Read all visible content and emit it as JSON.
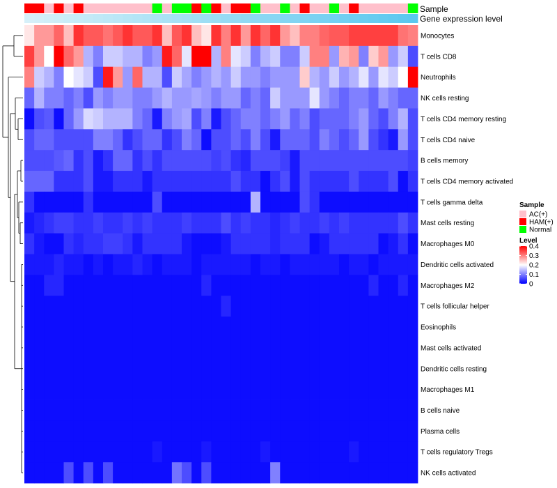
{
  "chart_data": {
    "type": "heatmap",
    "annotations": {
      "sample_label": "Sample",
      "gene_expression_label": "Gene expression level"
    },
    "sample_groups": [
      "HAM(+)",
      "HAM(+)",
      "AC(+)",
      "HAM(+)",
      "AC(+)",
      "HAM(+)",
      "AC(+)",
      "AC(+)",
      "AC(+)",
      "AC(+)",
      "AC(+)",
      "AC(+)",
      "AC(+)",
      "Normal",
      "AC(+)",
      "Normal",
      "Normal",
      "HAM(+)",
      "Normal",
      "HAM(+)",
      "AC(+)",
      "HAM(+)",
      "HAM(+)",
      "Normal",
      "AC(+)",
      "AC(+)",
      "Normal",
      "AC(+)",
      "HAM(+)",
      "AC(+)",
      "AC(+)",
      "Normal",
      "AC(+)",
      "HAM(+)",
      "AC(+)",
      "AC(+)",
      "AC(+)",
      "AC(+)",
      "AC(+)",
      "Normal"
    ],
    "rows": [
      {
        "name": "Monocytes",
        "values": [
          0.22,
          0.28,
          0.28,
          0.32,
          0.25,
          0.36,
          0.33,
          0.33,
          0.31,
          0.33,
          0.36,
          0.33,
          0.33,
          0.36,
          0.25,
          0.33,
          0.36,
          0.25,
          0.22,
          0.36,
          0.3,
          0.36,
          0.28,
          0.36,
          0.32,
          0.36,
          0.28,
          0.25,
          0.3,
          0.3,
          0.32,
          0.33,
          0.33,
          0.35,
          0.35,
          0.35,
          0.35,
          0.35,
          0.31,
          0.3
        ]
      },
      {
        "name": "T cells CD8",
        "values": [
          0.35,
          0.28,
          0.2,
          0.4,
          0.32,
          0.28,
          0.14,
          0.1,
          0.16,
          0.16,
          0.14,
          0.14,
          0.1,
          0.12,
          0.38,
          0.32,
          0.18,
          0.4,
          0.4,
          0.14,
          0.3,
          0.18,
          0.16,
          0.1,
          0.14,
          0.16,
          0.1,
          0.1,
          0.16,
          0.3,
          0.3,
          0.12,
          0.26,
          0.28,
          0.1,
          0.24,
          0.28,
          0.12,
          0.16,
          0.06
        ]
      },
      {
        "name": "Neutrophils",
        "values": [
          0.3,
          0.16,
          0.14,
          0.1,
          0.2,
          0.18,
          0.16,
          0.06,
          0.38,
          0.28,
          0.12,
          0.32,
          0.14,
          0.14,
          0.06,
          0.16,
          0.13,
          0.1,
          0.12,
          0.14,
          0.12,
          0.16,
          0.12,
          0.12,
          0.1,
          0.12,
          0.12,
          0.12,
          0.24,
          0.14,
          0.12,
          0.16,
          0.12,
          0.14,
          0.18,
          0.12,
          0.18,
          0.16,
          0.2,
          0.4
        ]
      },
      {
        "name": "NK cells resting",
        "values": [
          0.08,
          0.14,
          0.1,
          0.1,
          0.08,
          0.1,
          0.06,
          0.12,
          0.1,
          0.12,
          0.12,
          0.1,
          0.1,
          0.12,
          0.14,
          0.12,
          0.12,
          0.13,
          0.12,
          0.1,
          0.12,
          0.12,
          0.08,
          0.1,
          0.08,
          0.16,
          0.12,
          0.12,
          0.12,
          0.18,
          0.12,
          0.1,
          0.08,
          0.1,
          0.1,
          0.08,
          0.12,
          0.1,
          0.08,
          0.08
        ]
      },
      {
        "name": "T cells CD4 memory resting",
        "values": [
          0.01,
          0.06,
          0.07,
          0.01,
          0.08,
          0.12,
          0.17,
          0.16,
          0.14,
          0.14,
          0.14,
          0.1,
          0.08,
          0.02,
          0.1,
          0.12,
          0.13,
          0.06,
          0.1,
          0.02,
          0.06,
          0.08,
          0.1,
          0.1,
          0.08,
          0.1,
          0.12,
          0.08,
          0.1,
          0.06,
          0.08,
          0.08,
          0.08,
          0.1,
          0.12,
          0.08,
          0.06,
          0.1,
          0.14,
          0.06
        ]
      },
      {
        "name": "T cells CD4 naive",
        "values": [
          0.06,
          0.08,
          0.08,
          0.06,
          0.06,
          0.06,
          0.06,
          0.1,
          0.1,
          0.08,
          0.04,
          0.06,
          0.08,
          0.08,
          0.04,
          0.06,
          0.1,
          0.08,
          0.01,
          0.06,
          0.06,
          0.08,
          0.06,
          0.1,
          0.06,
          0.02,
          0.08,
          0.08,
          0.08,
          0.06,
          0.1,
          0.08,
          0.06,
          0.08,
          0.12,
          0.06,
          0.04,
          0.02,
          0.12,
          0.06
        ]
      },
      {
        "name": "B cells memory",
        "values": [
          0.06,
          0.06,
          0.06,
          0.07,
          0.08,
          0.04,
          0.06,
          0.02,
          0.04,
          0.08,
          0.08,
          0.04,
          0.06,
          0.04,
          0.06,
          0.06,
          0.06,
          0.06,
          0.06,
          0.05,
          0.06,
          0.04,
          0.03,
          0.06,
          0.06,
          0.06,
          0.05,
          0.02,
          0.06,
          0.06,
          0.06,
          0.06,
          0.06,
          0.06,
          0.06,
          0.06,
          0.06,
          0.06,
          0.06,
          0.05
        ]
      },
      {
        "name": "T cells CD4 memory activated",
        "values": [
          0.08,
          0.08,
          0.08,
          0.04,
          0.04,
          0.04,
          0.06,
          0.02,
          0.02,
          0.04,
          0.04,
          0.04,
          0.02,
          0.04,
          0.04,
          0.04,
          0.04,
          0.04,
          0.04,
          0.04,
          0.04,
          0.06,
          0.04,
          0.04,
          0.01,
          0.04,
          0.06,
          0.02,
          0.06,
          0.04,
          0.04,
          0.04,
          0.04,
          0.06,
          0.04,
          0.04,
          0.04,
          0.06,
          0.01,
          0.04
        ]
      },
      {
        "name": "T cells gamma delta",
        "values": [
          0.04,
          0.01,
          0.01,
          0.01,
          0.01,
          0.01,
          0.04,
          0.01,
          0.01,
          0.01,
          0.01,
          0.01,
          0.01,
          0.06,
          0.01,
          0.01,
          0.01,
          0.01,
          0.01,
          0.01,
          0.01,
          0.01,
          0.01,
          0.14,
          0.01,
          0.01,
          0.01,
          0.01,
          0.06,
          0.04,
          0.01,
          0.01,
          0.01,
          0.01,
          0.01,
          0.01,
          0.01,
          0.01,
          0.01,
          0.01
        ]
      },
      {
        "name": "Mast cells resting",
        "values": [
          0.02,
          0.03,
          0.04,
          0.05,
          0.05,
          0.04,
          0.04,
          0.05,
          0.04,
          0.04,
          0.05,
          0.04,
          0.05,
          0.04,
          0.04,
          0.04,
          0.05,
          0.04,
          0.04,
          0.04,
          0.06,
          0.04,
          0.05,
          0.04,
          0.04,
          0.03,
          0.04,
          0.05,
          0.04,
          0.04,
          0.05,
          0.04,
          0.05,
          0.04,
          0.04,
          0.04,
          0.04,
          0.04,
          0.06,
          0.04
        ]
      },
      {
        "name": "Macrophages M0",
        "values": [
          0.04,
          0.02,
          0.01,
          0.01,
          0.04,
          0.03,
          0.04,
          0.04,
          0.05,
          0.05,
          0.04,
          0.02,
          0.04,
          0.04,
          0.04,
          0.04,
          0.02,
          0.01,
          0.01,
          0.01,
          0.02,
          0.04,
          0.04,
          0.04,
          0.04,
          0.03,
          0.04,
          0.04,
          0.04,
          0.01,
          0.02,
          0.04,
          0.04,
          0.04,
          0.04,
          0.04,
          0.01,
          0.02,
          0.04,
          0.01
        ]
      },
      {
        "name": "Dendritic cells activated",
        "values": [
          0.02,
          0.02,
          0.02,
          0.03,
          0.02,
          0.02,
          0.01,
          0.02,
          0.01,
          0.02,
          0.02,
          0.03,
          0.02,
          0.01,
          0.02,
          0.02,
          0.02,
          0.01,
          0.02,
          0.02,
          0.02,
          0.02,
          0.02,
          0.01,
          0.02,
          0.02,
          0.01,
          0.02,
          0.02,
          0.02,
          0.02,
          0.02,
          0.01,
          0.02,
          0.02,
          0.01,
          0.02,
          0.02,
          0.02,
          0.02
        ]
      },
      {
        "name": "Macrophages M2",
        "values": [
          0.01,
          0.01,
          0.03,
          0.03,
          0.01,
          0.01,
          0.01,
          0.01,
          0.01,
          0.01,
          0.01,
          0.01,
          0.01,
          0.01,
          0.01,
          0.01,
          0.01,
          0.01,
          0.03,
          0.01,
          0.01,
          0.01,
          0.01,
          0.01,
          0.01,
          0.01,
          0.01,
          0.01,
          0.01,
          0.01,
          0.01,
          0.01,
          0.01,
          0.01,
          0.01,
          0.03,
          0.01,
          0.01,
          0.03,
          0.01
        ]
      },
      {
        "name": "T cells follicular helper",
        "values": [
          0.01,
          0.01,
          0.01,
          0.01,
          0.01,
          0.01,
          0.01,
          0.01,
          0.01,
          0.01,
          0.01,
          0.01,
          0.01,
          0.01,
          0.01,
          0.01,
          0.01,
          0.01,
          0.01,
          0.01,
          0.03,
          0.01,
          0.01,
          0.01,
          0.01,
          0.01,
          0.01,
          0.01,
          0.01,
          0.01,
          0.01,
          0.01,
          0.01,
          0.01,
          0.01,
          0.01,
          0.01,
          0.01,
          0.01,
          0.01
        ]
      },
      {
        "name": "Eosinophils",
        "values": [
          0.01,
          0.01,
          0.01,
          0.01,
          0.01,
          0.01,
          0.01,
          0.01,
          0.01,
          0.01,
          0.01,
          0.01,
          0.01,
          0.01,
          0.01,
          0.01,
          0.01,
          0.01,
          0.01,
          0.01,
          0.01,
          0.01,
          0.01,
          0.01,
          0.01,
          0.01,
          0.01,
          0.01,
          0.01,
          0.01,
          0.01,
          0.01,
          0.01,
          0.01,
          0.01,
          0.01,
          0.01,
          0.01,
          0.01,
          0.01
        ]
      },
      {
        "name": "Mast cells activated",
        "values": [
          0.01,
          0.01,
          0.01,
          0.01,
          0.01,
          0.01,
          0.01,
          0.01,
          0.01,
          0.01,
          0.01,
          0.01,
          0.01,
          0.01,
          0.01,
          0.01,
          0.01,
          0.01,
          0.01,
          0.01,
          0.01,
          0.01,
          0.01,
          0.01,
          0.01,
          0.01,
          0.01,
          0.01,
          0.01,
          0.01,
          0.01,
          0.01,
          0.01,
          0.01,
          0.01,
          0.01,
          0.01,
          0.01,
          0.01,
          0.01
        ]
      },
      {
        "name": "Dendritic cells resting",
        "values": [
          0.01,
          0.01,
          0.01,
          0.01,
          0.01,
          0.01,
          0.01,
          0.01,
          0.01,
          0.01,
          0.01,
          0.01,
          0.01,
          0.01,
          0.01,
          0.01,
          0.01,
          0.01,
          0.01,
          0.01,
          0.01,
          0.01,
          0.01,
          0.01,
          0.01,
          0.01,
          0.01,
          0.01,
          0.01,
          0.01,
          0.01,
          0.01,
          0.01,
          0.01,
          0.01,
          0.01,
          0.01,
          0.01,
          0.01,
          0.01
        ]
      },
      {
        "name": "Macrophages M1",
        "values": [
          0.01,
          0.01,
          0.01,
          0.01,
          0.01,
          0.01,
          0.01,
          0.01,
          0.01,
          0.01,
          0.01,
          0.01,
          0.01,
          0.01,
          0.01,
          0.01,
          0.01,
          0.01,
          0.01,
          0.01,
          0.01,
          0.01,
          0.01,
          0.01,
          0.01,
          0.01,
          0.01,
          0.01,
          0.01,
          0.01,
          0.01,
          0.01,
          0.01,
          0.01,
          0.01,
          0.01,
          0.01,
          0.01,
          0.01,
          0.01
        ]
      },
      {
        "name": "B cells naive",
        "values": [
          0.01,
          0.01,
          0.01,
          0.01,
          0.01,
          0.01,
          0.01,
          0.01,
          0.01,
          0.01,
          0.01,
          0.01,
          0.01,
          0.01,
          0.01,
          0.01,
          0.01,
          0.01,
          0.01,
          0.01,
          0.01,
          0.01,
          0.01,
          0.01,
          0.01,
          0.01,
          0.01,
          0.01,
          0.01,
          0.01,
          0.01,
          0.01,
          0.01,
          0.01,
          0.01,
          0.01,
          0.01,
          0.01,
          0.01,
          0.01
        ]
      },
      {
        "name": "Plasma cells",
        "values": [
          0.01,
          0.01,
          0.01,
          0.01,
          0.01,
          0.01,
          0.01,
          0.01,
          0.01,
          0.01,
          0.01,
          0.01,
          0.01,
          0.01,
          0.01,
          0.01,
          0.01,
          0.01,
          0.01,
          0.01,
          0.01,
          0.01,
          0.01,
          0.01,
          0.01,
          0.01,
          0.01,
          0.01,
          0.01,
          0.01,
          0.01,
          0.01,
          0.01,
          0.01,
          0.01,
          0.01,
          0.01,
          0.01,
          0.01,
          0.01
        ]
      },
      {
        "name": "T cells regulatory  Tregs",
        "values": [
          0.01,
          0.01,
          0.01,
          0.01,
          0.01,
          0.01,
          0.01,
          0.01,
          0.01,
          0.01,
          0.01,
          0.01,
          0.01,
          0.02,
          0.01,
          0.01,
          0.01,
          0.01,
          0.02,
          0.01,
          0.01,
          0.01,
          0.01,
          0.01,
          0.02,
          0.01,
          0.01,
          0.01,
          0.01,
          0.01,
          0.01,
          0.01,
          0.01,
          0.02,
          0.01,
          0.01,
          0.01,
          0.01,
          0.01,
          0.01
        ]
      },
      {
        "name": "NK cells activated",
        "values": [
          0.01,
          0.01,
          0.01,
          0.01,
          0.06,
          0.01,
          0.06,
          0.01,
          0.06,
          0.01,
          0.01,
          0.01,
          0.01,
          0.01,
          0.01,
          0.09,
          0.06,
          0.01,
          0.06,
          0.01,
          0.01,
          0.01,
          0.01,
          0.01,
          0.01,
          0.1,
          0.01,
          0.01,
          0.01,
          0.01,
          0.01,
          0.01,
          0.01,
          0.01,
          0.01,
          0.01,
          0.01,
          0.01,
          0.01,
          0.01
        ]
      }
    ],
    "gene_expression_gradient": [
      "#d6f0f9",
      "#5bc8ef"
    ],
    "sample_legend": {
      "title": "Sample",
      "entries": [
        {
          "label": "AC(+)",
          "color": "#ffc0cb"
        },
        {
          "label": "HAM(+)",
          "color": "#ff0000"
        },
        {
          "label": "Normal",
          "color": "#00ff00"
        }
      ]
    },
    "level_legend": {
      "title": "Level",
      "ticks": [
        "0.4",
        "0.3",
        "0.2",
        "0.1",
        "0"
      ],
      "tick_values": [
        0.4,
        0.3,
        0.2,
        0.1,
        0
      ],
      "range": [
        0,
        0.4
      ],
      "colors": {
        "low": "#0000ff",
        "mid": "#ffffff",
        "high": "#ff0000"
      }
    }
  }
}
